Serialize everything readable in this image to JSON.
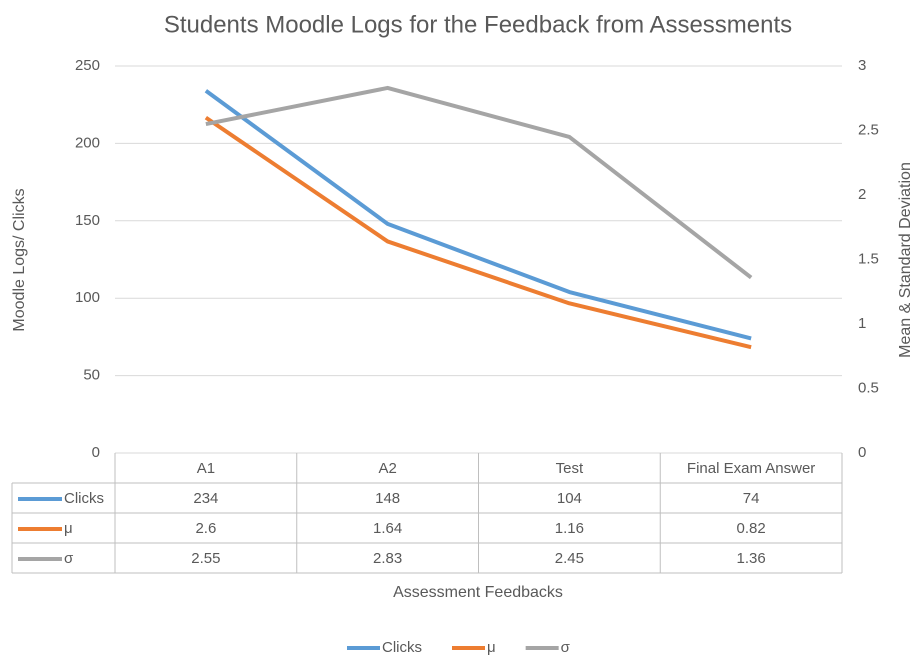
{
  "chart_data": {
    "type": "line",
    "title": "Students Moodle Logs for the Feedback from Assessments",
    "x_label": "Assessment Feedbacks",
    "y_label": "Moodle Logs/ Clicks",
    "y2_label": "Mean & Standard Deviation",
    "categories": [
      "A1",
      "A2",
      "Test",
      "Final Exam Answer"
    ],
    "series": [
      {
        "name": "Clicks",
        "color": "#5b9bd5",
        "values": [
          234,
          148,
          104,
          74
        ]
      },
      {
        "name": "μ",
        "color": "#ed7d31",
        "values": [
          2.6,
          1.64,
          1.16,
          0.82
        ],
        "axis": "y2"
      },
      {
        "name": "σ",
        "color": "#a5a5a5",
        "values": [
          2.55,
          2.83,
          2.45,
          1.36
        ],
        "axis": "y2"
      }
    ],
    "ylim": [
      0,
      250
    ],
    "yticks": [
      0,
      50,
      100,
      150,
      200,
      250
    ],
    "y2lim": [
      0,
      3
    ],
    "y2ticks": [
      0,
      0.5,
      1,
      1.5,
      2,
      2.5,
      3
    ],
    "grid": true,
    "legend": "bottom",
    "data_table": true
  }
}
